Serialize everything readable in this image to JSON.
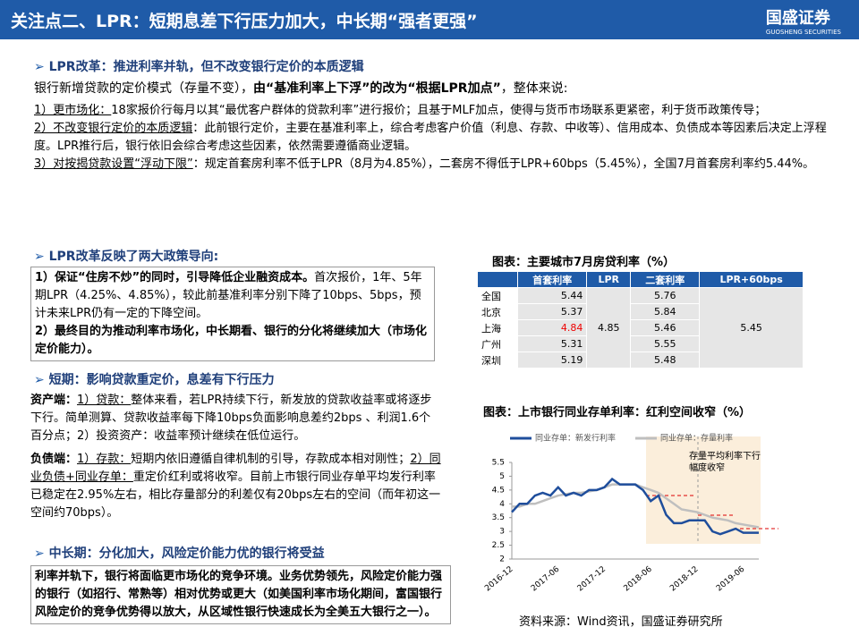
{
  "header": {
    "title": "关注点二、LPR：短期息差下行压力加大，中长期“强者更强”",
    "logo_name": "国盛证券",
    "logo_sub": "GUOSHENG SECURITIES"
  },
  "section1": {
    "heading": "LPR改革：推进利率并轨，但不改变银行定价的本质逻辑",
    "intro": [
      "银行新增贷款的定价模式（存量不变），",
      "由“基准利率上下浮”的改为“根据LPR加点”",
      "，整体来说:"
    ],
    "items": [
      [
        "1）更市场化：",
        "18家报价行每月以其“最优客户群体的贷款利率”进行报价；且基于MLF加点，使得与货币市场联系更紧密，利于货币政策传导；"
      ],
      [
        "2）不改变银行定价的本质逻辑",
        "：此前银行定价，主要在基准利率上，综合考虑客户价值（利息、存款、中收等）、信用成本、负债成本等因素后决定上浮程度。LPR推行后，银行依旧会综合考虑这些因素，依然需要遵循商业逻辑。"
      ],
      [
        "3）对按揭贷款设置“浮动下限”",
        "：规定首套房利率不低于LPR（8月为4.85%），二套房不得低于LPR+60bps（5.45%），全国7月首套房利率约5.44%。"
      ]
    ]
  },
  "section2": {
    "heading": "LPR改革反映了两大政策导向:",
    "points": [
      [
        "1）保证“住房不炒”的同时，引导降低企业融资成本。",
        "首次报价，1年、5年期LPR（4.25%、4.85%），较此前基准利率分别下降了10bps、5bps，预计未来LPR仍有一定的下降空间。"
      ],
      [
        "2）最终目的为推动利率市场化，中长期看、银行的分化将继续加大（市场化定价能力）。",
        ""
      ]
    ]
  },
  "section3": {
    "heading": "短期：影响贷款重定价，息差有下行压力",
    "asset": [
      "资产端：",
      "1）贷款：",
      "整体来看，若LPR持续下行，新发放的贷款收益率或将逐步下行。简单测算、贷款收益率每下降10bps负面影响息差约2bps 、利润1.6个百分点；2）投资资产：收益率预计继续在低位运行。"
    ],
    "liability": [
      "负债端：",
      "1）存款：",
      "短期内依旧遵循自律机制的引导，存款成本相对刚性；",
      "2）同业负债+同业存单：",
      "重定价红利或将收窄。目前上市银行同业存单平均发行利率已稳定在2.95%左右，相比存量部分的利差仅有20bps左右的空间（而年初这一空间约70bps）。"
    ]
  },
  "section4": {
    "heading": "中长期：分化加大，风险定价能力优的银行将受益",
    "body": "利率并轨下，银行将面临更市场化的竞争环境。业务优势领先，风险定价能力强的银行（如招行、常熟等）相对优势或更大（如美国利率市场化期间，富国银行风险定价的竞争优势得以放大，从区域性银行快速成长为全美五大银行之一）。"
  },
  "table": {
    "title": "图表：主要城市7月房贷利率（%）",
    "headers": [
      "首套利率",
      "LPR",
      "二套利率",
      "LPR+60bps"
    ],
    "lpr": 4.85,
    "lpr60": 5.45,
    "rows": [
      [
        "全国",
        5.44,
        5.76
      ],
      [
        "北京",
        5.37,
        5.84
      ],
      [
        "上海",
        4.84,
        5.46
      ],
      [
        "广州",
        5.31,
        5.55
      ],
      [
        "深圳",
        5.19,
        5.48
      ]
    ]
  },
  "chart_data": {
    "type": "line",
    "title": "图表：上市银行同业存单利率：红利空间收窄（%）",
    "annotation": "存量平均利率下行幅度收窄",
    "categories": [
      "2016-12",
      null,
      null,
      null,
      null,
      null,
      "2017-06",
      null,
      null,
      null,
      null,
      null,
      "2017-12",
      null,
      null,
      null,
      null,
      null,
      "2018-06",
      null,
      null,
      null,
      null,
      null,
      "2018-12",
      null,
      null,
      null,
      null,
      null,
      "2019-06",
      null,
      null
    ],
    "series": [
      {
        "name": "同业存单：新发行利率",
        "color": "#1f4e9c",
        "values": [
          3.7,
          4.0,
          4.0,
          4.3,
          4.4,
          4.3,
          4.6,
          4.3,
          4.4,
          4.3,
          4.5,
          4.5,
          4.6,
          4.9,
          4.7,
          4.7,
          4.7,
          4.5,
          4.1,
          4.3,
          3.6,
          3.3,
          3.3,
          3.4,
          3.4,
          3.4,
          3.0,
          2.9,
          3.0,
          3.1,
          2.95,
          2.95,
          2.95
        ]
      },
      {
        "name": "同业存单：存量利率",
        "color": "#bfbfbf",
        "values": [
          3.9,
          3.9,
          4.0,
          4.0,
          4.1,
          4.2,
          4.3,
          4.35,
          4.4,
          4.4,
          4.45,
          4.5,
          4.6,
          4.7,
          4.7,
          4.7,
          4.7,
          4.6,
          4.5,
          4.4,
          4.2,
          4.0,
          3.8,
          3.75,
          3.7,
          3.6,
          3.5,
          3.45,
          3.4,
          3.3,
          3.25,
          3.2,
          3.15
        ]
      }
    ],
    "ylim": [
      2,
      5.5
    ],
    "yticks": [
      2,
      2.5,
      3,
      3.5,
      4,
      4.5,
      5,
      5.5
    ]
  },
  "source": "资料来源：Wind资讯，国盛证券研究所"
}
